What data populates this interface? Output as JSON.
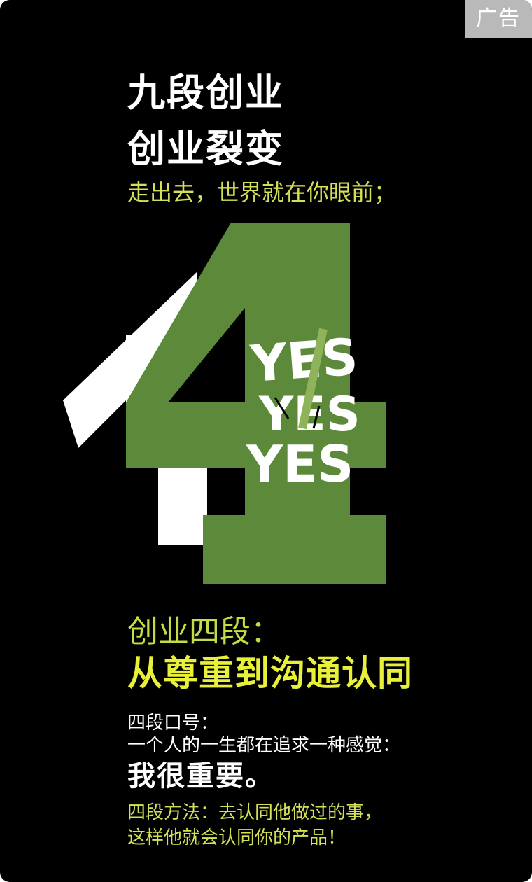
{
  "badge": {
    "label": "广告"
  },
  "headline": {
    "line1": "九段创业",
    "line2": "创业裂变",
    "tagline": "走出去，世界就在你眼前；"
  },
  "graphic": {
    "numeral": "4",
    "words": [
      "YES",
      "YES",
      "YES"
    ],
    "colors": {
      "green": "#5d8a3a",
      "white": "#ffffff",
      "background": "#000000"
    }
  },
  "stage": {
    "heading": "创业四段：",
    "title": "从尊重到沟通认同"
  },
  "slogan": {
    "label": "四段口号：",
    "text": "一个人的一生都在追求一种感觉：",
    "emphasis": "我很重要。"
  },
  "method": {
    "line1": "四段方法：去认同他做过的事，",
    "line2": "这样他就会认同你的产品！"
  }
}
